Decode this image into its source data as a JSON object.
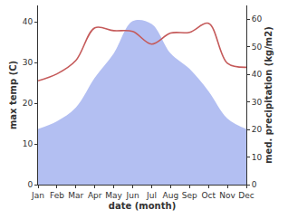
{
  "chart_data": {
    "type": "line",
    "x_label": "date (month)",
    "y_label": "max temp (C)",
    "y2_label": "med. precipitation (kg/m2)",
    "categories": [
      "Jan",
      "Feb",
      "Mar",
      "Apr",
      "May",
      "Jun",
      "Jul",
      "Aug",
      "Sep",
      "Oct",
      "Nov",
      "Dec"
    ],
    "series": [
      {
        "name": "med. precipitation (kg/m2)",
        "type": "area",
        "axis": "y2",
        "color": "#b3bff2",
        "values": [
          20.2,
          23,
          28,
          38.8,
          47.6,
          59.3,
          58.3,
          47.6,
          42,
          33.9,
          24,
          20.2
        ]
      },
      {
        "name": "max temp (C)",
        "type": "line",
        "color": "#c55a5a",
        "values": [
          25.5,
          27.2,
          30.5,
          38.5,
          37.8,
          37.6,
          34.5,
          37.2,
          37.4,
          39.6,
          29.8,
          28.8
        ]
      }
    ],
    "ylim": [
      0,
      44
    ],
    "yticks": [
      0,
      10,
      20,
      30,
      40
    ],
    "y2lim": [
      0,
      65
    ],
    "y2ticks": [
      0,
      10,
      20,
      30,
      40,
      50,
      60
    ],
    "grid": false,
    "legend": false
  }
}
